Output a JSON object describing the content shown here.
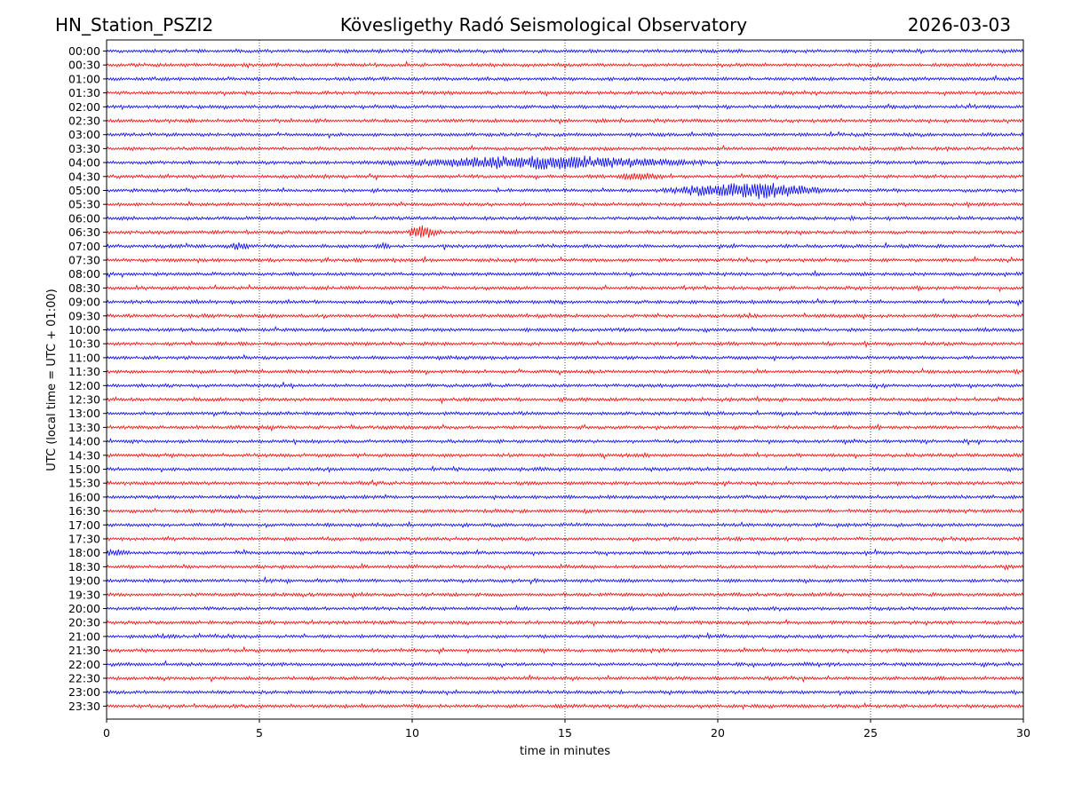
{
  "header": {
    "station": "HN_Station_PSZI2",
    "observatory": "Kövesligethy Radó Seismological Observatory",
    "date": "2026-03-03"
  },
  "chart_data": {
    "type": "line",
    "subtype": "helicorder",
    "xlabel": "time in minutes",
    "ylabel": "UTC (local time = UTC + 01:00)",
    "xlim": [
      0,
      30
    ],
    "x_ticks": [
      "0",
      "5",
      "10",
      "15",
      "20",
      "25",
      "30"
    ],
    "x_gridlines_minutes": [
      5,
      10,
      15,
      20,
      25
    ],
    "grid": "vertical dotted",
    "trace_colors": [
      "#0000ff",
      "#ff0000"
    ],
    "rows": [
      "00:00",
      "00:30",
      "01:00",
      "01:30",
      "02:00",
      "02:30",
      "03:00",
      "03:30",
      "04:00",
      "04:30",
      "05:00",
      "05:30",
      "06:00",
      "06:30",
      "07:00",
      "07:30",
      "08:00",
      "08:30",
      "09:00",
      "09:30",
      "10:00",
      "10:30",
      "11:00",
      "11:30",
      "12:00",
      "12:30",
      "13:00",
      "13:30",
      "14:00",
      "14:30",
      "15:00",
      "15:30",
      "16:00",
      "16:30",
      "17:00",
      "17:30",
      "18:00",
      "18:30",
      "19:00",
      "19:30",
      "20:00",
      "20:30",
      "21:00",
      "21:30",
      "22:00",
      "22:30",
      "23:00",
      "23:30"
    ],
    "events": [
      {
        "row": "04:00",
        "start_min": 8.5,
        "end_min": 19.5,
        "peak_min": 14.5,
        "amplitude": 7
      },
      {
        "row": "04:30",
        "start_min": 16.5,
        "end_min": 18.5,
        "peak_min": 17.4,
        "amplitude": 3
      },
      {
        "row": "05:00",
        "start_min": 18.0,
        "end_min": 24.0,
        "peak_min": 21.0,
        "amplitude": 9
      },
      {
        "row": "06:30",
        "start_min": 9.9,
        "end_min": 11.0,
        "peak_min": 10.3,
        "amplitude": 8
      },
      {
        "row": "07:00",
        "start_min": 3.9,
        "end_min": 4.7,
        "peak_min": 4.3,
        "amplitude": 4
      },
      {
        "row": "07:00",
        "start_min": 8.7,
        "end_min": 9.3,
        "peak_min": 9.0,
        "amplitude": 3
      },
      {
        "row": "18:00",
        "start_min": 0.0,
        "end_min": 0.8,
        "peak_min": 0.3,
        "amplitude": 3
      }
    ]
  }
}
